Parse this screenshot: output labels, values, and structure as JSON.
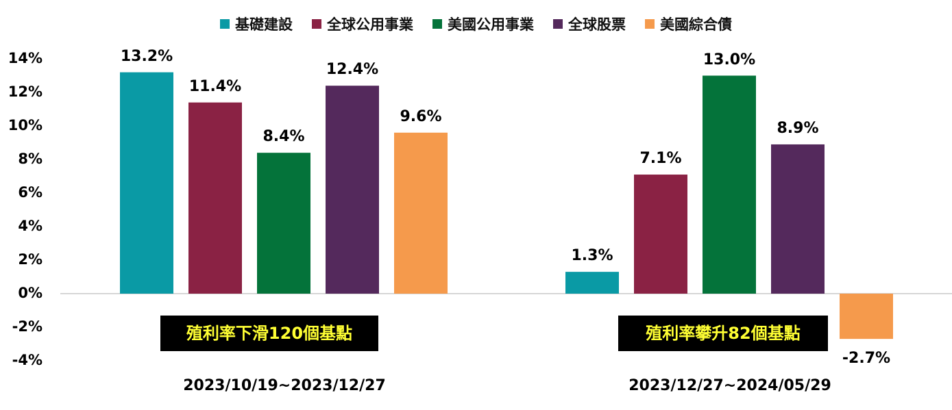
{
  "chart_data": {
    "type": "bar",
    "series": [
      {
        "name": "基礎建設",
        "color": "#0a9aa5",
        "values": [
          13.2,
          1.3
        ]
      },
      {
        "name": "全球公用事業",
        "color": "#8a2244",
        "values": [
          11.4,
          7.1
        ]
      },
      {
        "name": "美國公用事業",
        "color": "#04733a",
        "values": [
          8.4,
          13.0
        ]
      },
      {
        "name": "全球股票",
        "color": "#54295c",
        "values": [
          12.4,
          8.9
        ]
      },
      {
        "name": "美國綜合債",
        "color": "#f59a4c",
        "values": [
          9.6,
          -2.7
        ]
      }
    ],
    "categories": [
      "2023/10/19~2023/12/27",
      "2023/12/27~2024/05/29"
    ],
    "data_labels": [
      [
        "13.2%",
        "11.4%",
        "8.4%",
        "12.4%",
        "9.6%"
      ],
      [
        "1.3%",
        "7.1%",
        "13.0%",
        "8.9%",
        "-2.7%"
      ]
    ],
    "annotations": [
      "殖利率下滑120個基點",
      "殖利率攀升82個基點"
    ],
    "y_ticks": [
      "14%",
      "12%",
      "10%",
      "8%",
      "6%",
      "4%",
      "2%",
      "0%",
      "-2%",
      "-4%"
    ],
    "ylim": [
      -4,
      14
    ],
    "grid": false,
    "legend_position": "top"
  }
}
